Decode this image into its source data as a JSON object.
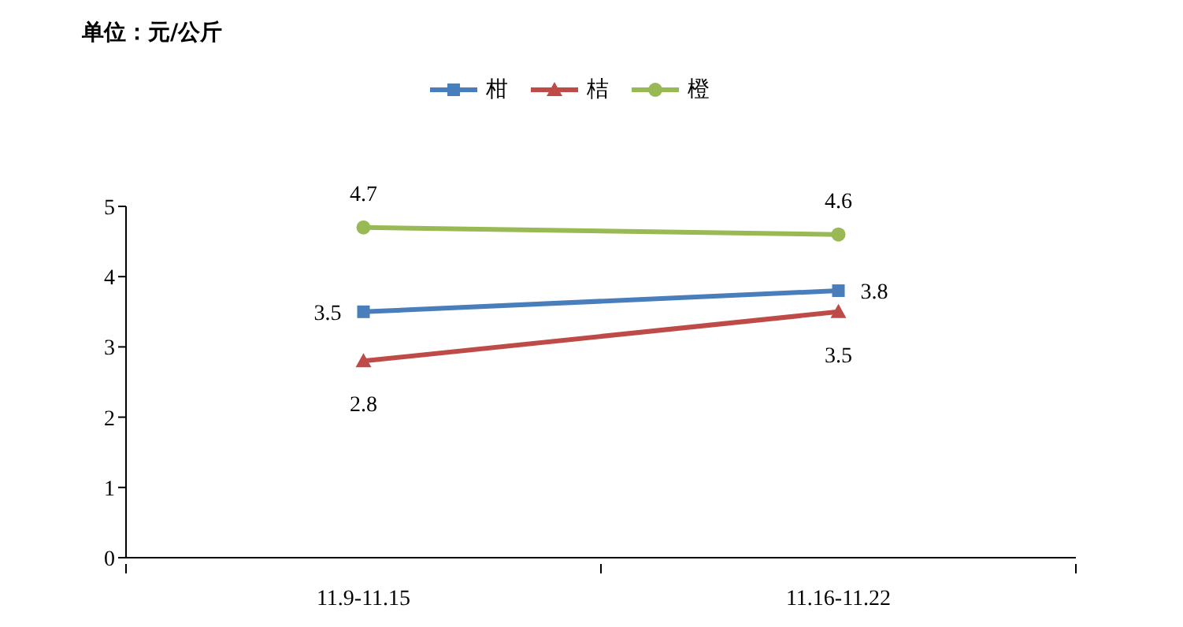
{
  "chart_data": {
    "type": "line",
    "title": "单位：元/公斤",
    "categories": [
      "11.9-11.15",
      "11.16-11.22"
    ],
    "series": [
      {
        "name": "柑",
        "color": "#4a7ebb",
        "marker": "square",
        "values": [
          3.5,
          3.8
        ]
      },
      {
        "name": "桔",
        "color": "#be4b48",
        "marker": "triangle",
        "values": [
          2.8,
          3.5
        ]
      },
      {
        "name": "橙",
        "color": "#98b954",
        "marker": "circle",
        "values": [
          4.7,
          4.6
        ]
      }
    ],
    "ylim": [
      0,
      5
    ],
    "yticks": [
      0,
      1,
      2,
      3,
      4,
      5
    ],
    "grid": false,
    "legend": "top",
    "data_labels": true
  }
}
